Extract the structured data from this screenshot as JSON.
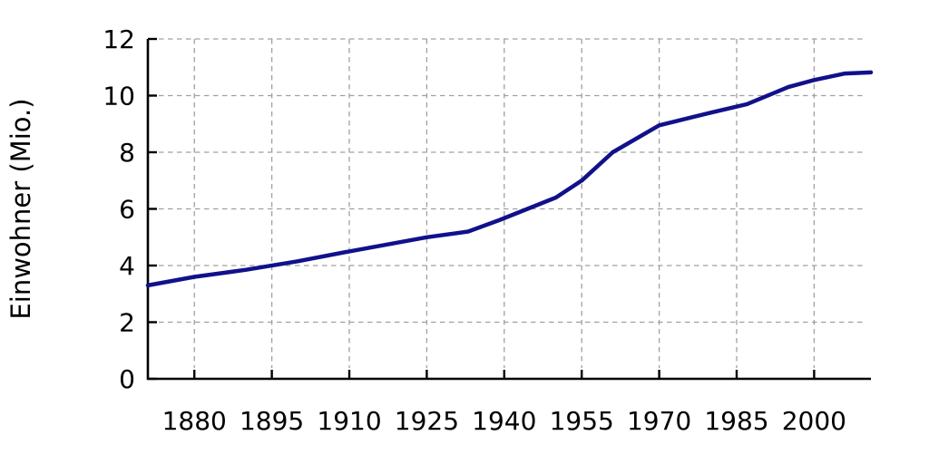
{
  "chart_data": {
    "type": "line",
    "title": "",
    "xlabel": "",
    "ylabel": "Einwohner (Mio.)",
    "x_ticks": [
      1880,
      1895,
      1910,
      1925,
      1940,
      1955,
      1970,
      1985,
      2000
    ],
    "y_ticks": [
      0,
      2,
      4,
      6,
      8,
      10,
      12
    ],
    "xlim": [
      1871,
      2011
    ],
    "ylim": [
      0,
      12
    ],
    "grid": "dashed",
    "legend_position": "none",
    "colors": {
      "line": "#11118b",
      "grid": "#a0a0a0",
      "axis": "#000000",
      "background": "#ffffff"
    },
    "series": [
      {
        "name": "Einwohner",
        "points": [
          [
            1871,
            3.3
          ],
          [
            1880,
            3.6
          ],
          [
            1890,
            3.85
          ],
          [
            1900,
            4.15
          ],
          [
            1910,
            4.5
          ],
          [
            1925,
            5.0
          ],
          [
            1933,
            5.2
          ],
          [
            1939,
            5.6
          ],
          [
            1950,
            6.4
          ],
          [
            1955,
            7.0
          ],
          [
            1961,
            8.0
          ],
          [
            1970,
            8.95
          ],
          [
            1980,
            9.4
          ],
          [
            1987,
            9.7
          ],
          [
            1995,
            10.3
          ],
          [
            2000,
            10.55
          ],
          [
            2006,
            10.78
          ],
          [
            2011,
            10.82
          ]
        ]
      }
    ]
  }
}
